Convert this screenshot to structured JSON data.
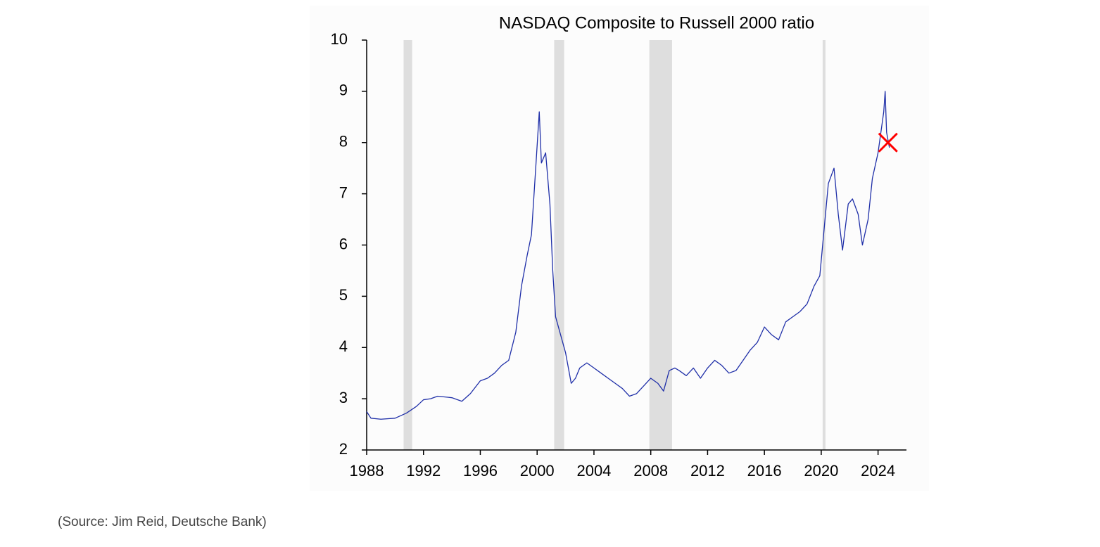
{
  "chart_data": {
    "type": "line",
    "title": "NASDAQ Composite to Russell 2000 ratio",
    "note": "(Source: Jim Reid, Deutsche Bank)",
    "color": "#1f2fa8",
    "x": [
      1988,
      1988.3,
      1989,
      1990,
      1990.8,
      1991.5,
      1992,
      1992.5,
      1993,
      1994,
      1994.7,
      1995.3,
      1996,
      1996.5,
      1997,
      1997.5,
      1998,
      1998.5,
      1998.9,
      1999.3,
      1999.6,
      1999.9,
      2000.15,
      2000.3,
      2000.6,
      2000.9,
      2001.1,
      2001.3,
      2001.7,
      2002,
      2002.4,
      2002.7,
      2003,
      2003.5,
      2004,
      2004.5,
      2005,
      2005.5,
      2006,
      2006.5,
      2007,
      2007.5,
      2008,
      2008.5,
      2008.9,
      2009.3,
      2009.7,
      2010,
      2010.5,
      2011,
      2011.5,
      2012,
      2012.5,
      2013,
      2013.5,
      2014,
      2014.5,
      2015,
      2015.5,
      2016,
      2016.5,
      2017,
      2017.5,
      2018,
      2018.5,
      2019,
      2019.5,
      2019.9,
      2020.2,
      2020.5,
      2020.9,
      2021.2,
      2021.5,
      2021.9,
      2022.2,
      2022.6,
      2022.9,
      2023.3,
      2023.6,
      2024,
      2024.4,
      2024.5,
      2024.6,
      2024.8
    ],
    "values": [
      2.75,
      2.62,
      2.6,
      2.62,
      2.72,
      2.85,
      2.98,
      3.0,
      3.05,
      3.02,
      2.95,
      3.1,
      3.35,
      3.4,
      3.5,
      3.65,
      3.75,
      4.3,
      5.2,
      5.8,
      6.2,
      7.5,
      8.6,
      7.6,
      7.8,
      6.8,
      5.5,
      4.6,
      4.2,
      3.9,
      3.3,
      3.4,
      3.6,
      3.7,
      3.6,
      3.5,
      3.4,
      3.3,
      3.2,
      3.05,
      3.1,
      3.25,
      3.4,
      3.3,
      3.15,
      3.55,
      3.6,
      3.55,
      3.45,
      3.6,
      3.4,
      3.6,
      3.75,
      3.65,
      3.5,
      3.55,
      3.75,
      3.95,
      4.1,
      4.4,
      4.25,
      4.15,
      4.5,
      4.6,
      4.7,
      4.85,
      5.2,
      5.4,
      6.3,
      7.2,
      7.5,
      6.6,
      5.9,
      6.8,
      6.9,
      6.6,
      6.0,
      6.5,
      7.3,
      7.8,
      8.6,
      9.0,
      8.2,
      7.9
    ],
    "shaded_ranges": [
      [
        1990.6,
        1991.2
      ],
      [
        2001.2,
        2001.9
      ],
      [
        2007.9,
        2009.5
      ],
      [
        2020.1,
        2020.3
      ]
    ],
    "shade_color": "#dedede",
    "marker": {
      "x": 2024.7,
      "y": 8.0,
      "color": "#ff0000"
    },
    "xlim": [
      1988,
      2026
    ],
    "xticks": [
      1988,
      1992,
      1996,
      2000,
      2004,
      2008,
      2012,
      2016,
      2020,
      2024
    ],
    "ylim": [
      2,
      10
    ],
    "yticks": [
      2,
      3,
      4,
      5,
      6,
      7,
      8,
      9,
      10
    ]
  }
}
